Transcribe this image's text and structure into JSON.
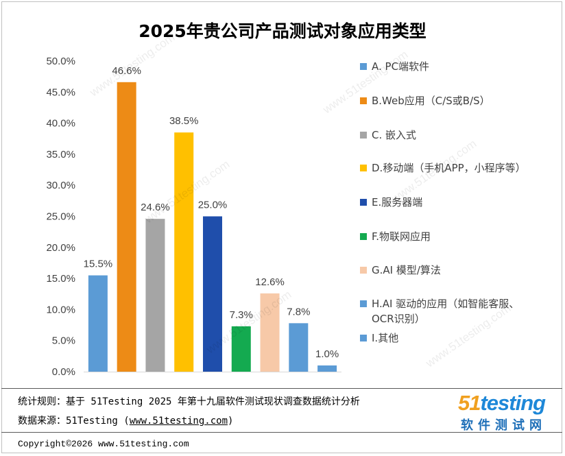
{
  "chart_data": {
    "type": "bar",
    "title": "2025年贵公司产品测试对象应用类型",
    "categories": [
      "A. PC端软件",
      "B.Web应用（C/S或B/S）",
      "C. 嵌入式",
      "D.移动端（手机APP，小程序等）",
      "E.服务器端",
      "F.物联网应用",
      "G.AI 模型/算法",
      "H.AI 驱动的应用（如智能客服、OCR识别）",
      "I.其他"
    ],
    "values": [
      15.5,
      46.6,
      24.6,
      38.5,
      25.0,
      7.3,
      12.6,
      7.8,
      1.0
    ],
    "value_labels": [
      "15.5%",
      "46.6%",
      "24.6%",
      "38.5%",
      "25.0%",
      "7.3%",
      "12.6%",
      "7.8%",
      "1.0%"
    ],
    "colors": [
      "#5b9bd5",
      "#ed8b16",
      "#a5a5a5",
      "#ffc000",
      "#1f4eab",
      "#14aa50",
      "#f7c9a8",
      "#5b9bd5",
      "#5b9bd5"
    ],
    "ylim": [
      0,
      50
    ],
    "ytick_labels": [
      "0.0%",
      "5.0%",
      "10.0%",
      "15.0%",
      "20.0%",
      "25.0%",
      "30.0%",
      "35.0%",
      "40.0%",
      "45.0%",
      "50.0%"
    ],
    "xlabel": "",
    "ylabel": "",
    "grid": false,
    "legend_position": "right"
  },
  "legend": {
    "items": [
      {
        "label": "A. PC端软件",
        "color": "#5b9bd5"
      },
      {
        "label": "B.Web应用（C/S或B/S）",
        "color": "#ed8b16"
      },
      {
        "label": "C. 嵌入式",
        "color": "#a5a5a5"
      },
      {
        "label": "D.移动端（手机APP，小程序等）",
        "color": "#ffc000"
      },
      {
        "label": "E.服务器端",
        "color": "#1f4eab"
      },
      {
        "label": "F.物联网应用",
        "color": "#14aa50"
      },
      {
        "label": "G.AI 模型/算法",
        "color": "#f7c9a8"
      },
      {
        "label": "H.AI 驱动的应用（如智能客服、OCR识别）",
        "color": "#5b9bd5"
      },
      {
        "label": "I.其他",
        "color": "#5b9bd5"
      }
    ]
  },
  "footer": {
    "rule": "统计规则：基于 51Testing 2025 年第十九届软件测试现状调查数据统计分析",
    "source_prefix": "数据来源：51Testing (",
    "source_link": "www.51testing.com",
    "source_suffix": ")",
    "copyright": "Copyright©2026 www.51testing.com"
  },
  "logo": {
    "num": "51",
    "word": "testing",
    "subtitle": "软件测试网"
  },
  "watermark": {
    "text": "www.51testing.com"
  }
}
